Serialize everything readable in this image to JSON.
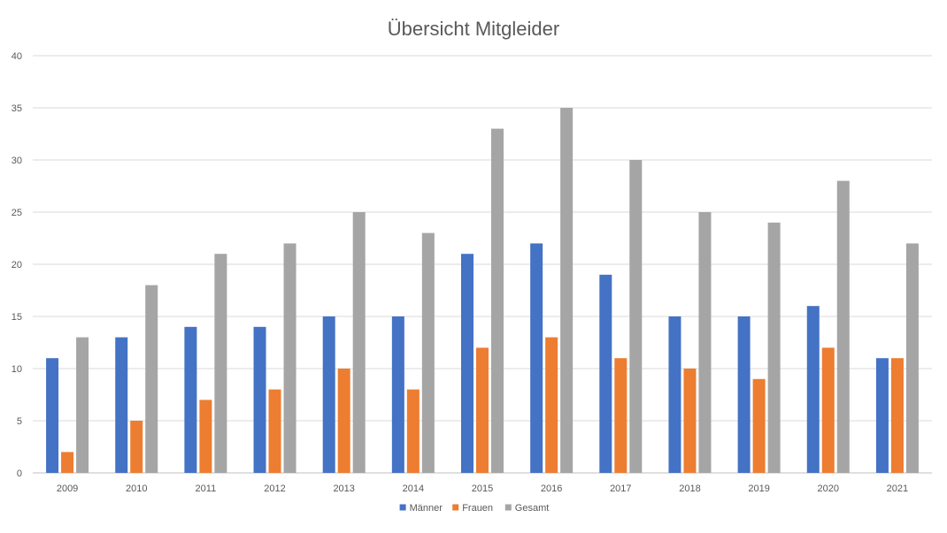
{
  "chart_data": {
    "type": "bar",
    "title": "Übersicht Mitgleider",
    "xlabel": "",
    "ylabel": "",
    "categories": [
      "2009",
      "2010",
      "2011",
      "2012",
      "2013",
      "2014",
      "2015",
      "2016",
      "2017",
      "2018",
      "2019",
      "2020",
      "2021"
    ],
    "series": [
      {
        "name": "Männer",
        "color": "#4472c4",
        "values": [
          11,
          13,
          14,
          14,
          15,
          15,
          21,
          22,
          19,
          15,
          15,
          16,
          11
        ]
      },
      {
        "name": "Frauen",
        "color": "#ed7d31",
        "values": [
          2,
          5,
          7,
          8,
          10,
          8,
          12,
          13,
          11,
          10,
          9,
          12,
          11
        ]
      },
      {
        "name": "Gesamt",
        "color": "#a5a5a5",
        "values": [
          13,
          18,
          21,
          22,
          25,
          23,
          33,
          35,
          30,
          25,
          24,
          28,
          22
        ]
      }
    ],
    "ylim": [
      0,
      40
    ],
    "yticks": [
      0,
      5,
      10,
      15,
      20,
      25,
      30,
      35,
      40
    ],
    "grid": true,
    "legend_position": "bottom"
  }
}
